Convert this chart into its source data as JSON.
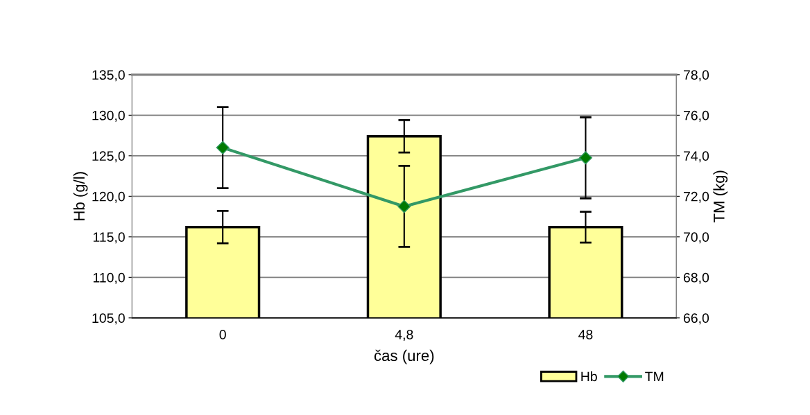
{
  "chart_data": {
    "type": "bar",
    "xlabel": "čas (ure)",
    "ylabel": "Hb (g/l)",
    "y2label": "TM (kg)",
    "categories": [
      "0",
      "4,8",
      "48"
    ],
    "series": [
      {
        "name": "Hb",
        "color": "#ffff99",
        "values": [
          116.2,
          127.4,
          116.2
        ],
        "errors": [
          2.0,
          2.0,
          1.9
        ]
      },
      {
        "name": "TM",
        "type": "line",
        "axis": "y2",
        "color": "#339966",
        "marker": "diamond",
        "values": [
          74.4,
          71.5,
          73.9
        ],
        "errors": [
          2.0,
          2.0,
          2.0
        ]
      }
    ],
    "ylim": [
      105,
      135
    ],
    "yticks": [
      {
        "value": 105,
        "label": "105,0"
      },
      {
        "value": 110,
        "label": "110,0"
      },
      {
        "value": 115,
        "label": "115,0"
      },
      {
        "value": 120,
        "label": "120,0"
      },
      {
        "value": 125,
        "label": "125,0"
      },
      {
        "value": 130,
        "label": "130,0"
      },
      {
        "value": 135,
        "label": "135,0"
      }
    ],
    "y2lim": [
      66,
      78
    ],
    "y2ticks": [
      {
        "value": 66,
        "label": "66,0"
      },
      {
        "value": 68,
        "label": "68,0"
      },
      {
        "value": 70,
        "label": "70,0"
      },
      {
        "value": 72,
        "label": "72,0"
      },
      {
        "value": 74,
        "label": "74,0"
      },
      {
        "value": 76,
        "label": "76,0"
      },
      {
        "value": 78,
        "label": "78,0"
      }
    ],
    "grid": "y",
    "legend": "bottom right"
  }
}
